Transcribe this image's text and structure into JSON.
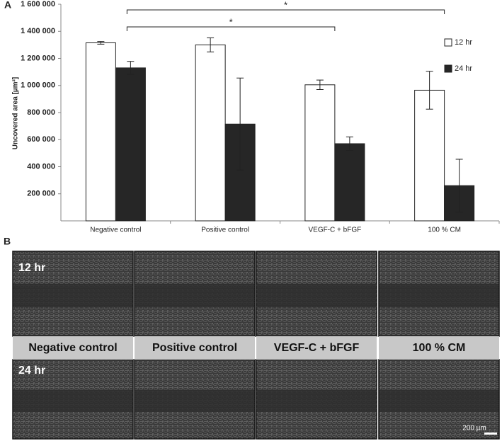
{
  "chart_data": {
    "type": "bar",
    "panel_label": "A",
    "y_label": "Uncovered area [µm²]",
    "categories": [
      "Negative control",
      "Positive control",
      "VEGF-C + bFGF",
      "100 % CM"
    ],
    "series": [
      {
        "name": "12 hr",
        "color": "#ffffff",
        "values": [
          1315000,
          1300000,
          1005000,
          965000
        ],
        "errors": [
          10000,
          52000,
          35000,
          140000
        ]
      },
      {
        "name": "24 hr",
        "color": "#262626",
        "values": [
          1130000,
          715000,
          570000,
          260000
        ],
        "errors": [
          48000,
          340000,
          50000,
          195000
        ]
      }
    ],
    "ylim": [
      0,
      1600000
    ],
    "yticks": [
      {
        "value": 200000,
        "label": "200 000"
      },
      {
        "value": 400000,
        "label": "400 000"
      },
      {
        "value": 600000,
        "label": "600 000"
      },
      {
        "value": 800000,
        "label": "800 000"
      },
      {
        "value": 1000000,
        "label": "1 000 000"
      },
      {
        "value": 1200000,
        "label": "1 200 000"
      },
      {
        "value": 1400000,
        "label": "1 400 000"
      },
      {
        "value": 1600000,
        "label": "1 600 000"
      }
    ],
    "annotations": [
      {
        "text": "*",
        "from": 0,
        "to": 3
      },
      {
        "text": "*",
        "from": 0,
        "to": 2
      }
    ]
  },
  "panel_b": {
    "label": "B",
    "rows": [
      "12 hr",
      "24 hr"
    ],
    "columns": [
      "Negative control",
      "Positive control",
      "VEGF-C + bFGF",
      "100 % CM"
    ],
    "scale_bar": "200 µm"
  }
}
